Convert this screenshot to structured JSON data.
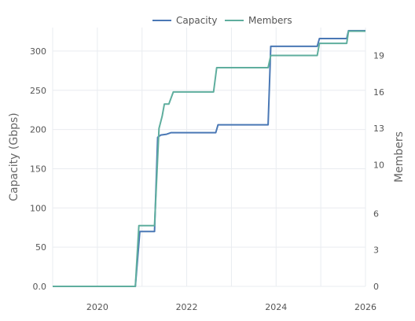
{
  "chart_data": {
    "type": "line",
    "xlabel": "",
    "ylabel_left": "Capacity (Gbps)",
    "ylabel_right": "Members",
    "x_ticks": [
      "2020",
      "2022",
      "2024",
      "2026"
    ],
    "y_left_ticks": [
      "0.0",
      "50",
      "100",
      "150",
      "200",
      "250",
      "300"
    ],
    "y_right_ticks": [
      "0",
      "3",
      "6",
      "10",
      "13",
      "16",
      "19"
    ],
    "xlim": [
      2019.0,
      2026.0
    ],
    "ylim_left": [
      0,
      330
    ],
    "ylim_right": [
      0,
      21.3
    ],
    "grid": true,
    "legend_position": "top-center",
    "series": [
      {
        "name": "Capacity",
        "axis": "left",
        "color": "#4a78b5",
        "points": [
          [
            2019.0,
            0
          ],
          [
            2020.85,
            0
          ],
          [
            2020.95,
            70
          ],
          [
            2021.28,
            70
          ],
          [
            2021.35,
            190
          ],
          [
            2021.42,
            193
          ],
          [
            2021.55,
            194
          ],
          [
            2021.65,
            196
          ],
          [
            2022.65,
            196
          ],
          [
            2022.7,
            206
          ],
          [
            2023.82,
            206
          ],
          [
            2023.88,
            306
          ],
          [
            2024.92,
            306
          ],
          [
            2024.97,
            316
          ],
          [
            2025.58,
            316
          ],
          [
            2025.62,
            326
          ],
          [
            2026.05,
            326
          ]
        ]
      },
      {
        "name": "Members",
        "axis": "right",
        "color": "#5fae9e",
        "points": [
          [
            2019.0,
            0
          ],
          [
            2020.85,
            0
          ],
          [
            2020.93,
            5
          ],
          [
            2021.28,
            5
          ],
          [
            2021.38,
            13
          ],
          [
            2021.45,
            14
          ],
          [
            2021.5,
            15
          ],
          [
            2021.6,
            15
          ],
          [
            2021.7,
            16
          ],
          [
            2022.6,
            16
          ],
          [
            2022.67,
            18
          ],
          [
            2023.82,
            18
          ],
          [
            2023.88,
            19
          ],
          [
            2024.92,
            19
          ],
          [
            2024.97,
            20
          ],
          [
            2025.58,
            20
          ],
          [
            2025.62,
            21
          ],
          [
            2026.05,
            21
          ]
        ]
      }
    ]
  }
}
